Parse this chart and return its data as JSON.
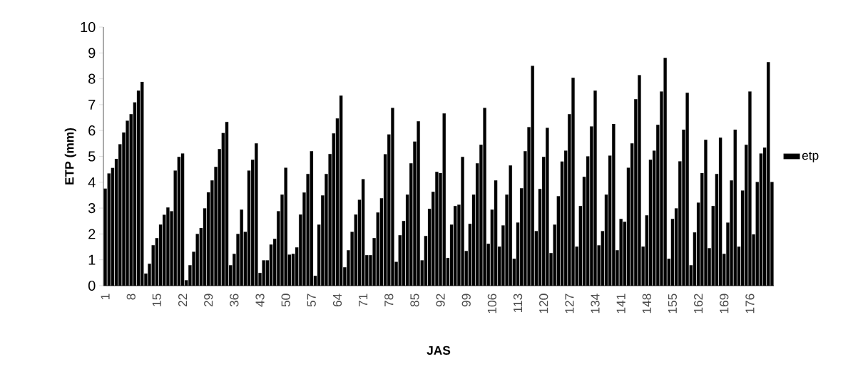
{
  "chart_data": {
    "type": "bar",
    "xlabel": "JAS",
    "ylabel": "ETP (mm)",
    "categories": [
      "1",
      null,
      null,
      null,
      null,
      null,
      null,
      "8",
      null,
      null,
      null,
      null,
      null,
      null,
      "15",
      null,
      null,
      null,
      null,
      null,
      null,
      "22",
      null,
      null,
      null,
      null,
      null,
      null,
      "29",
      null,
      null,
      null,
      null,
      null,
      null,
      "36",
      null,
      null,
      null,
      null,
      null,
      null,
      "43",
      null,
      null,
      null,
      null,
      null,
      null,
      "50",
      null,
      null,
      null,
      null,
      null,
      null,
      "57",
      null,
      null,
      null,
      null,
      null,
      null,
      "64",
      null,
      null,
      null,
      null,
      null,
      null,
      "71",
      null,
      null,
      null,
      null,
      null,
      null,
      "78",
      null,
      null,
      null,
      null,
      null,
      null,
      "85",
      null,
      null,
      null,
      null,
      null,
      null,
      "92",
      null,
      null,
      null,
      null,
      null,
      null,
      "99",
      null,
      null,
      null,
      null,
      null,
      null,
      "106",
      null,
      null,
      null,
      null,
      null,
      null,
      "113",
      null,
      null,
      null,
      null,
      null,
      null,
      "120",
      null,
      null,
      null,
      null,
      null,
      null,
      "127",
      null,
      null,
      null,
      null,
      null,
      null,
      "134",
      null,
      null,
      null,
      null,
      null,
      null,
      "141",
      null,
      null,
      null,
      null,
      null,
      null,
      "148",
      null,
      null,
      null,
      null,
      null,
      null,
      "155",
      null,
      null,
      null,
      null,
      null,
      null,
      "162",
      null,
      null,
      null,
      null,
      null,
      null,
      "169",
      null,
      null,
      null,
      null,
      null,
      null,
      "176",
      null,
      null,
      null,
      null,
      null,
      null
    ],
    "series": [
      {
        "name": "etp",
        "color": "#000000",
        "values": [
          3.75,
          4.34,
          4.55,
          4.9,
          5.47,
          5.92,
          6.38,
          6.63,
          7.09,
          7.54,
          7.88,
          0.47,
          0.85,
          1.56,
          1.84,
          2.36,
          2.74,
          3.02,
          2.88,
          4.45,
          4.98,
          5.11,
          0.21,
          0.79,
          1.31,
          2.0,
          2.23,
          2.99,
          3.61,
          4.07,
          4.59,
          5.28,
          5.9,
          6.33,
          0.79,
          1.23,
          2.0,
          2.94,
          2.08,
          4.45,
          4.87,
          5.5,
          0.49,
          0.98,
          0.98,
          1.59,
          1.81,
          2.88,
          3.52,
          4.56,
          1.2,
          1.23,
          1.48,
          2.75,
          3.6,
          4.32,
          5.2,
          0.38,
          2.36,
          3.49,
          4.32,
          5.09,
          5.89,
          6.47,
          7.35,
          0.71,
          1.37,
          2.08,
          2.75,
          3.32,
          4.12,
          1.18,
          1.18,
          1.84,
          2.83,
          3.38,
          5.08,
          5.85,
          6.87,
          0.92,
          1.95,
          2.5,
          3.52,
          4.73,
          5.57,
          6.36,
          0.98,
          1.92,
          2.97,
          3.63,
          4.4,
          4.35,
          6.66,
          1.07,
          2.36,
          3.08,
          3.13,
          4.98,
          1.34,
          2.39,
          3.52,
          4.73,
          5.45,
          6.87,
          1.62,
          2.94,
          4.07,
          1.51,
          2.33,
          3.52,
          4.65,
          1.04,
          2.44,
          3.77,
          5.2,
          6.13,
          8.5,
          2.11,
          3.74,
          4.98,
          6.1,
          1.26,
          2.36,
          3.46,
          4.8,
          5.22,
          6.63,
          8.04,
          1.51,
          3.08,
          4.21,
          5.0,
          6.16,
          7.54,
          1.56,
          2.11,
          3.52,
          5.03,
          6.25,
          1.37,
          2.58,
          2.47,
          4.56,
          5.5,
          7.21,
          8.14,
          1.51,
          2.72,
          4.87,
          5.22,
          6.22,
          7.51,
          8.81,
          1.04,
          2.58,
          2.99,
          4.81,
          6.03,
          7.46,
          0.79,
          2.06,
          3.21,
          4.35,
          5.64,
          1.45,
          3.08,
          4.32,
          5.72,
          1.23,
          2.44,
          4.07,
          6.03,
          1.51,
          3.68,
          5.45,
          7.51,
          1.98,
          4.01,
          5.11,
          5.34,
          8.64,
          4.01
        ]
      }
    ],
    "ylim": [
      0,
      10
    ],
    "yticks": [
      0,
      1,
      2,
      3,
      4,
      5,
      6,
      7,
      8,
      9,
      10
    ],
    "legend": "right"
  }
}
